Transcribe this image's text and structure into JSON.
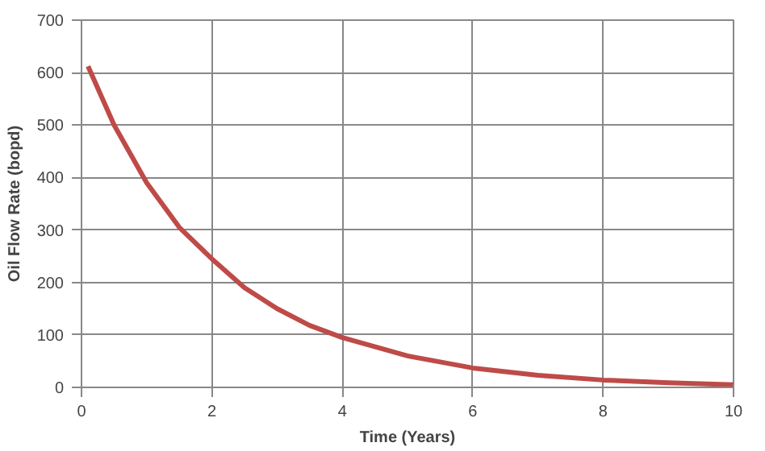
{
  "chart_data": {
    "type": "line",
    "xlabel": "Time (Years)",
    "ylabel": "Oil Flow Rate (bopd)",
    "series": [
      {
        "color": "#be4b48",
        "x": [
          0.1,
          0.5,
          1,
          1.5,
          2,
          2.5,
          3,
          3.5,
          4,
          5,
          6,
          7,
          8,
          9,
          10
        ],
        "values": [
          612,
          500,
          390,
          305,
          245,
          190,
          150,
          118,
          95,
          60,
          37,
          23,
          14,
          9,
          5
        ]
      }
    ],
    "xlim": [
      0,
      10
    ],
    "xticks": [
      0,
      2,
      4,
      6,
      8,
      10
    ],
    "ylim": [
      0,
      700
    ],
    "yticks": [
      0,
      100,
      200,
      300,
      400,
      500,
      600,
      700
    ],
    "grid": true,
    "marker": "none",
    "line_style": "solid"
  }
}
